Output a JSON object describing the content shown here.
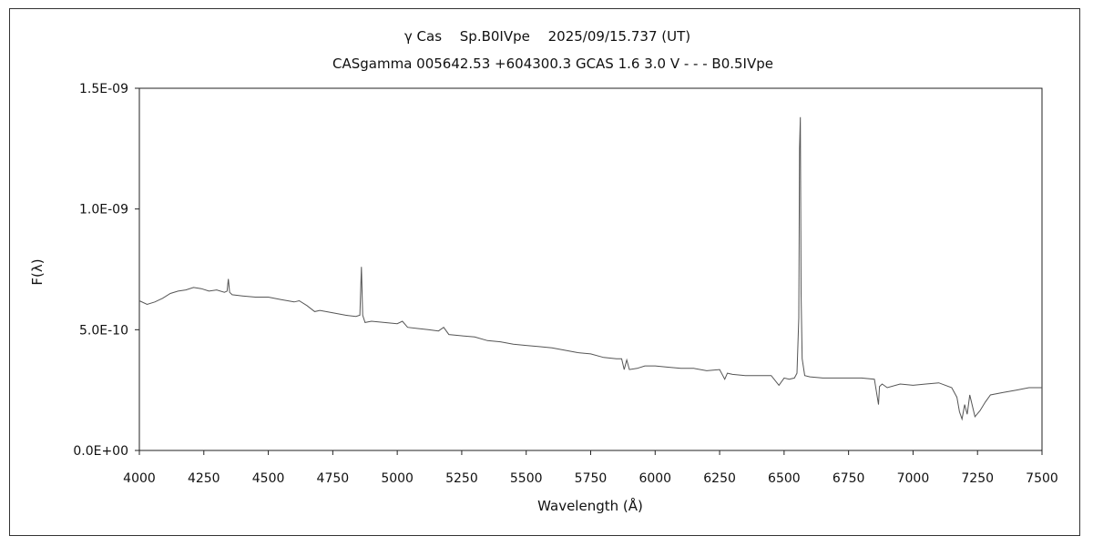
{
  "chart_data": {
    "type": "line",
    "title": "γ Cas　 Sp.B0IVpe　 2025/09/15.737 (UT)",
    "subtitle": "CASgamma 005642.53 +604300.3 GCAS 1.6 3.0 V - - - B0.5IVpe",
    "xlabel": "Wavelength (Å)",
    "ylabel": "F(λ)",
    "xlim": [
      4000,
      7500
    ],
    "ylim": [
      0,
      1.5e-09
    ],
    "grid": false,
    "x_ticks": [
      "4000",
      "4250",
      "4500",
      "4750",
      "5000",
      "5250",
      "5500",
      "5750",
      "6000",
      "6250",
      "6500",
      "6750",
      "7000",
      "7250",
      "7500"
    ],
    "y_ticks": [
      "0.0E+00",
      "5.0E-10",
      "1.0E-09",
      "1.5E-09"
    ],
    "line_color": "#555555",
    "series": [
      {
        "x": [
          4000,
          4030,
          4060,
          4090,
          4120,
          4150,
          4180,
          4210,
          4240,
          4270,
          4300,
          4330,
          4340,
          4345,
          4350,
          4360,
          4400,
          4450,
          4500,
          4550,
          4600,
          4620,
          4650,
          4680,
          4700,
          4750,
          4800,
          4840,
          4855,
          4861,
          4866,
          4875,
          4900,
          4950,
          5000,
          5020,
          5040,
          5080,
          5120,
          5160,
          5180,
          5200,
          5250,
          5300,
          5350,
          5400,
          5450,
          5500,
          5550,
          5600,
          5650,
          5700,
          5750,
          5800,
          5850,
          5870,
          5880,
          5890,
          5900,
          5930,
          5960,
          6000,
          6050,
          6100,
          6150,
          6200,
          6250,
          6270,
          6280,
          6300,
          6350,
          6400,
          6450,
          6480,
          6500,
          6520,
          6540,
          6550,
          6557,
          6560,
          6563,
          6566,
          6570,
          6580,
          6600,
          6650,
          6700,
          6750,
          6800,
          6850,
          6866,
          6870,
          6880,
          6900,
          6950,
          7000,
          7050,
          7100,
          7150,
          7170,
          7180,
          7190,
          7200,
          7210,
          7220,
          7240,
          7260,
          7280,
          7300,
          7350,
          7400,
          7450,
          7500
        ],
        "y": [
          6.2e-10,
          6.05e-10,
          6.15e-10,
          6.3e-10,
          6.5e-10,
          6.6e-10,
          6.65e-10,
          6.75e-10,
          6.7e-10,
          6.6e-10,
          6.65e-10,
          6.55e-10,
          6.6e-10,
          7.1e-10,
          6.55e-10,
          6.45e-10,
          6.4e-10,
          6.35e-10,
          6.35e-10,
          6.25e-10,
          6.15e-10,
          6.2e-10,
          6e-10,
          5.75e-10,
          5.8e-10,
          5.7e-10,
          5.6e-10,
          5.55e-10,
          5.6e-10,
          7.6e-10,
          5.6e-10,
          5.3e-10,
          5.35e-10,
          5.3e-10,
          5.25e-10,
          5.35e-10,
          5.1e-10,
          5.05e-10,
          5e-10,
          4.95e-10,
          5.1e-10,
          4.8e-10,
          4.75e-10,
          4.7e-10,
          4.55e-10,
          4.5e-10,
          4.4e-10,
          4.35e-10,
          4.3e-10,
          4.25e-10,
          4.15e-10,
          4.05e-10,
          4e-10,
          3.85e-10,
          3.8e-10,
          3.8e-10,
          3.35e-10,
          3.75e-10,
          3.35e-10,
          3.4e-10,
          3.5e-10,
          3.5e-10,
          3.45e-10,
          3.4e-10,
          3.4e-10,
          3.3e-10,
          3.35e-10,
          2.95e-10,
          3.2e-10,
          3.15e-10,
          3.1e-10,
          3.1e-10,
          3.1e-10,
          2.7e-10,
          3e-10,
          2.95e-10,
          3e-10,
          3.2e-10,
          5.5e-10,
          1.25e-09,
          1.38e-09,
          6.5e-10,
          3.8e-10,
          3.1e-10,
          3.05e-10,
          3e-10,
          3e-10,
          3e-10,
          3e-10,
          2.95e-10,
          1.9e-10,
          2.65e-10,
          2.75e-10,
          2.6e-10,
          2.75e-10,
          2.7e-10,
          2.75e-10,
          2.8e-10,
          2.6e-10,
          2.2e-10,
          1.6e-10,
          1.3e-10,
          1.9e-10,
          1.5e-10,
          2.3e-10,
          1.4e-10,
          1.65e-10,
          2e-10,
          2.3e-10,
          2.4e-10,
          2.5e-10,
          2.6e-10,
          2.6e-10
        ]
      }
    ]
  }
}
